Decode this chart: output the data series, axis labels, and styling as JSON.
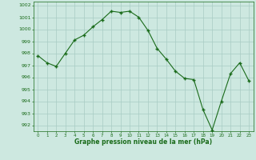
{
  "x": [
    0,
    1,
    2,
    3,
    4,
    5,
    6,
    7,
    8,
    9,
    10,
    11,
    12,
    13,
    14,
    15,
    16,
    17,
    18,
    19,
    20,
    21,
    22,
    23
  ],
  "y": [
    997.8,
    997.2,
    996.9,
    998.0,
    999.1,
    999.5,
    1000.2,
    1000.8,
    1001.5,
    1001.4,
    1001.5,
    1001.0,
    999.9,
    998.4,
    997.5,
    996.5,
    995.9,
    995.8,
    993.3,
    991.6,
    994.0,
    996.3,
    997.2,
    995.7
  ],
  "line_color": "#1a6b1a",
  "marker_color": "#1a6b1a",
  "bg_color": "#cde8e0",
  "grid_color": "#a8ccc4",
  "xlabel": "Graphe pression niveau de la mer (hPa)",
  "xlabel_color": "#1a6b1a",
  "ylim": [
    991.5,
    1002.3
  ],
  "xlim": [
    -0.5,
    23.5
  ],
  "yticks": [
    992,
    993,
    994,
    995,
    996,
    997,
    998,
    999,
    1000,
    1001,
    1002
  ],
  "xticks": [
    0,
    1,
    2,
    3,
    4,
    5,
    6,
    7,
    8,
    9,
    10,
    11,
    12,
    13,
    14,
    15,
    16,
    17,
    18,
    19,
    20,
    21,
    22,
    23
  ]
}
